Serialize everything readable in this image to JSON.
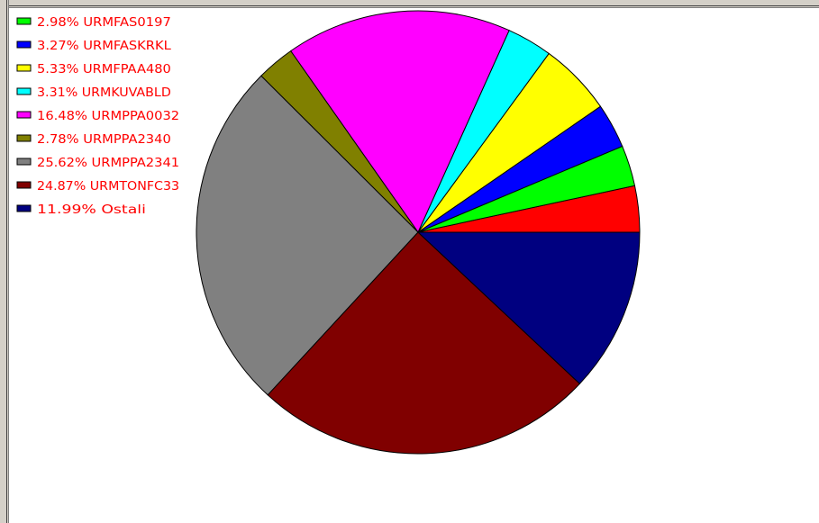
{
  "chart_data": {
    "type": "pie",
    "slices": [
      {
        "label": "2.98% URMFAS0197",
        "name": "URMFAS0197",
        "value": 2.98,
        "color": "#00ff00"
      },
      {
        "label": "3.27% URMFASKRKL",
        "name": "URMFASKRKL",
        "value": 3.27,
        "color": "#0000ff"
      },
      {
        "label": "5.33% URMFPAA480",
        "name": "URMFPAA480",
        "value": 5.33,
        "color": "#ffff00"
      },
      {
        "label": "3.31% URMKUVABLD",
        "name": "URMKUVABLD",
        "value": 3.31,
        "color": "#00ffff"
      },
      {
        "label": "16.48% URMPPA0032",
        "name": "URMPPA0032",
        "value": 16.48,
        "color": "#ff00ff"
      },
      {
        "label": "2.78% URMPPA2340",
        "name": "URMPPA2340",
        "value": 2.78,
        "color": "#808000"
      },
      {
        "label": "25.62% URMPPA2341",
        "name": "URMPPA2341",
        "value": 25.62,
        "color": "#808080"
      },
      {
        "label": "24.87% URMTONFC33",
        "name": "URMTONFC33",
        "value": 24.87,
        "color": "#800000"
      },
      {
        "label": "11.99% Ostali",
        "name": "Ostali",
        "value": 11.99,
        "color": "#000080"
      }
    ],
    "unlabeled_slices": [
      {
        "value": 3.37,
        "color": "#ff0000"
      }
    ],
    "legend_placement": "top-left",
    "label_color": "#ff0000"
  }
}
